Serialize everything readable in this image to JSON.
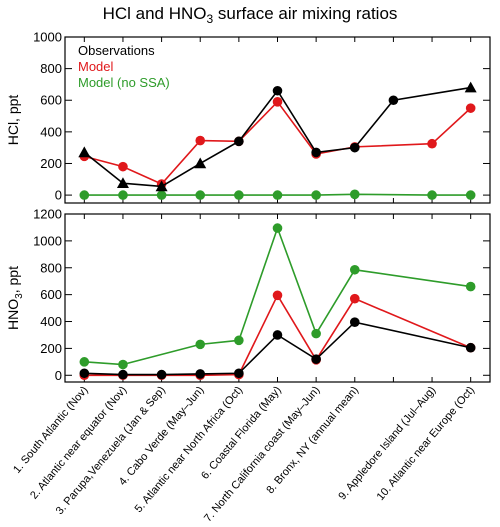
{
  "title": {
    "prefix": "HCl and HNO",
    "subscript": "3",
    "suffix": " surface air mixing ratios"
  },
  "colors": {
    "observations": "#000000",
    "model": "#e0181b",
    "model_no_ssa": "#2e9c2a"
  },
  "chart_data": [
    {
      "type": "line",
      "ylabel": "HCl, ppt",
      "ylim": [
        -50,
        1000
      ],
      "yticks": [
        0,
        200,
        400,
        600,
        800,
        1000
      ],
      "ytick_labels": [
        "0",
        "200",
        "400",
        "600",
        "800",
        "1000"
      ],
      "legend": {
        "placement": "top-left",
        "entries": [
          "Observations",
          "Model",
          "Model (no SSA)"
        ]
      },
      "x": [
        1,
        2,
        3,
        4,
        5,
        6,
        7,
        8,
        9,
        10,
        11
      ],
      "series": [
        {
          "name": "Observations",
          "values": [
            270,
            75,
            55,
            200,
            340,
            660,
            270,
            300,
            600,
            680
          ],
          "x": [
            1,
            2,
            3,
            4,
            5,
            6,
            7,
            8,
            9,
            11
          ],
          "markers": [
            "triangle",
            "triangle",
            "triangle",
            "triangle",
            "circle",
            "circle",
            "circle",
            "circle",
            "circle",
            "triangle"
          ]
        },
        {
          "name": "Model",
          "values": [
            245,
            180,
            70,
            345,
            340,
            590,
            260,
            305,
            325,
            550
          ],
          "x": [
            1,
            2,
            3,
            4,
            5,
            6,
            7,
            8,
            10,
            11
          ],
          "markers": [
            "circle"
          ]
        },
        {
          "name": "Model (no SSA)",
          "values": [
            0,
            0,
            0,
            0,
            0,
            0,
            0,
            5,
            0,
            0
          ],
          "x": [
            1,
            2,
            3,
            4,
            5,
            6,
            7,
            8,
            10,
            11
          ],
          "markers": [
            "circle"
          ]
        }
      ]
    },
    {
      "type": "line",
      "ylabel_prefix": "HNO",
      "ylabel_subscript": "3",
      "ylabel_suffix": ", ppt",
      "ylim": [
        -50,
        1200
      ],
      "yticks": [
        0,
        200,
        400,
        600,
        800,
        1000,
        1200
      ],
      "ytick_labels": [
        "0",
        "200",
        "400",
        "600",
        "800",
        "1000",
        "1200"
      ],
      "x": [
        1,
        2,
        3,
        4,
        5,
        6,
        7,
        8,
        9,
        10,
        11
      ],
      "series": [
        {
          "name": "Observations",
          "values": [
            15,
            5,
            5,
            10,
            15,
            300,
            120,
            395,
            205
          ],
          "x": [
            1,
            2,
            3,
            4,
            5,
            6,
            7,
            8,
            11
          ],
          "markers": [
            "circle"
          ]
        },
        {
          "name": "Model",
          "values": [
            0,
            0,
            0,
            0,
            5,
            595,
            115,
            570,
            205
          ],
          "x": [
            1,
            2,
            3,
            4,
            5,
            6,
            7,
            8,
            11
          ],
          "markers": [
            "circle"
          ]
        },
        {
          "name": "Model (no SSA)",
          "values": [
            100,
            80,
            230,
            260,
            1095,
            310,
            785,
            660
          ],
          "x": [
            1,
            2,
            4,
            5,
            6,
            7,
            8,
            11
          ],
          "markers": [
            "circle"
          ]
        }
      ]
    }
  ],
  "categories": [
    "1. South Atlantic (Nov)",
    "2. Atlantic near equator (Nov)",
    "3. Parupa,Venezuela (Jan & Sep)",
    "4. Cabo Verde (May–Jun)",
    "5. Atlantic near North Africa (Oct)",
    "6. Coastal Florida (May)",
    "7. North California coast (May–Jun)",
    "8. Bronx, NY (annual mean)",
    "9. Appledore Island (Jul–Aug)",
    "10. Atlantic near Europe (Oct)"
  ],
  "category_positions": [
    1,
    2,
    3,
    4,
    5,
    6,
    7,
    8,
    10,
    11
  ]
}
